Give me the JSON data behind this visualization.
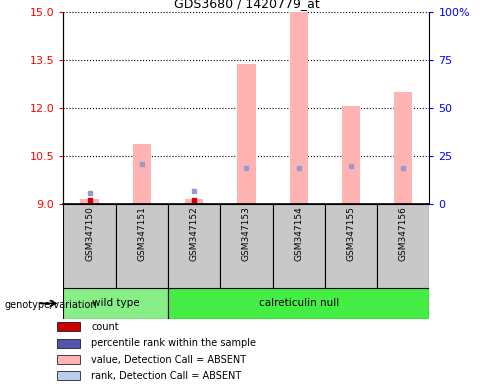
{
  "title": "GDS3680 / 1420779_at",
  "samples": [
    "GSM347150",
    "GSM347151",
    "GSM347152",
    "GSM347153",
    "GSM347154",
    "GSM347155",
    "GSM347156"
  ],
  "ylim_left": [
    9,
    15
  ],
  "ylim_right": [
    0,
    100
  ],
  "yticks_left": [
    9,
    10.5,
    12,
    13.5,
    15
  ],
  "yticks_right": [
    0,
    25,
    50,
    75,
    100
  ],
  "ytick_labels_right": [
    "0",
    "25",
    "50",
    "75",
    "100%"
  ],
  "bar_heights_pink": [
    9.15,
    10.85,
    9.15,
    13.35,
    15.0,
    12.05,
    12.5
  ],
  "bar_bottom": 9.0,
  "blue_square_y": [
    9.32,
    10.22,
    9.38,
    10.12,
    10.12,
    10.18,
    10.12
  ],
  "red_square_y": [
    9.12,
    null,
    9.12,
    null,
    null,
    null,
    null
  ],
  "pink_bar_color": "#FFB3B3",
  "blue_square_color": "#9999CC",
  "red_square_color": "#CC0000",
  "bg_color": "#C8C8C8",
  "wild_type_color": "#88EE88",
  "calreticulin_color": "#44EE44",
  "genotype_label": "genotype/variation",
  "wild_type_label": "wild type",
  "calreticulin_label": "calreticulin null",
  "legend_colors": [
    "#CC0000",
    "#5555AA",
    "#FFB3B3",
    "#BBCCEE"
  ],
  "legend_labels": [
    "count",
    "percentile rank within the sample",
    "value, Detection Call = ABSENT",
    "rank, Detection Call = ABSENT"
  ]
}
